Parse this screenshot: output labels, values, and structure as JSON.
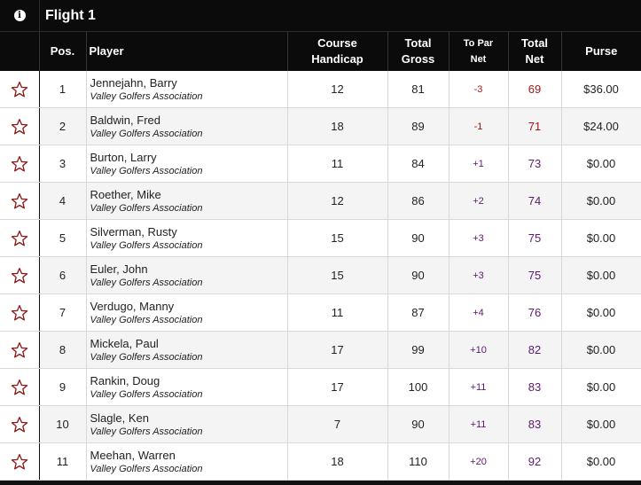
{
  "flight_title": "Flight 1",
  "headers": {
    "pos": "Pos.",
    "player": "Player",
    "hcp_1": "Course",
    "hcp_2": "Handicap",
    "gross_1": "Total",
    "gross_2": "Gross",
    "topar_1": "To Par",
    "topar_2": "Net",
    "net_1": "Total",
    "net_2": "Net",
    "purse": "Purse"
  },
  "colors": {
    "negative": "#a31515",
    "positive": "#5b1a6e",
    "header_bg": "#0b0b0b"
  },
  "rows": [
    {
      "pos": "1",
      "name": "Jennejahn, Barry",
      "club": "Valley Golfers Association",
      "hcp": "12",
      "gross": "81",
      "topar": "-3",
      "net": "69",
      "purse": "$36.00"
    },
    {
      "pos": "2",
      "name": "Baldwin, Fred",
      "club": "Valley Golfers Association",
      "hcp": "18",
      "gross": "89",
      "topar": "-1",
      "net": "71",
      "purse": "$24.00"
    },
    {
      "pos": "3",
      "name": "Burton, Larry",
      "club": "Valley Golfers Association",
      "hcp": "11",
      "gross": "84",
      "topar": "+1",
      "net": "73",
      "purse": "$0.00"
    },
    {
      "pos": "4",
      "name": "Roether, Mike",
      "club": "Valley Golfers Association",
      "hcp": "12",
      "gross": "86",
      "topar": "+2",
      "net": "74",
      "purse": "$0.00"
    },
    {
      "pos": "5",
      "name": "Silverman, Rusty",
      "club": "Valley Golfers Association",
      "hcp": "15",
      "gross": "90",
      "topar": "+3",
      "net": "75",
      "purse": "$0.00"
    },
    {
      "pos": "6",
      "name": "Euler, John",
      "club": "Valley Golfers Association",
      "hcp": "15",
      "gross": "90",
      "topar": "+3",
      "net": "75",
      "purse": "$0.00"
    },
    {
      "pos": "7",
      "name": "Verdugo, Manny",
      "club": "Valley Golfers Association",
      "hcp": "11",
      "gross": "87",
      "topar": "+4",
      "net": "76",
      "purse": "$0.00"
    },
    {
      "pos": "8",
      "name": "Mickela, Paul",
      "club": "Valley Golfers Association",
      "hcp": "17",
      "gross": "99",
      "topar": "+10",
      "net": "82",
      "purse": "$0.00"
    },
    {
      "pos": "9",
      "name": "Rankin, Doug",
      "club": "Valley Golfers Association",
      "hcp": "17",
      "gross": "100",
      "topar": "+11",
      "net": "83",
      "purse": "$0.00"
    },
    {
      "pos": "10",
      "name": "Slagle, Ken",
      "club": "Valley Golfers Association",
      "hcp": "7",
      "gross": "90",
      "topar": "+11",
      "net": "83",
      "purse": "$0.00"
    },
    {
      "pos": "11",
      "name": "Meehan, Warren",
      "club": "Valley Golfers Association",
      "hcp": "18",
      "gross": "110",
      "topar": "+20",
      "net": "92",
      "purse": "$0.00"
    }
  ]
}
